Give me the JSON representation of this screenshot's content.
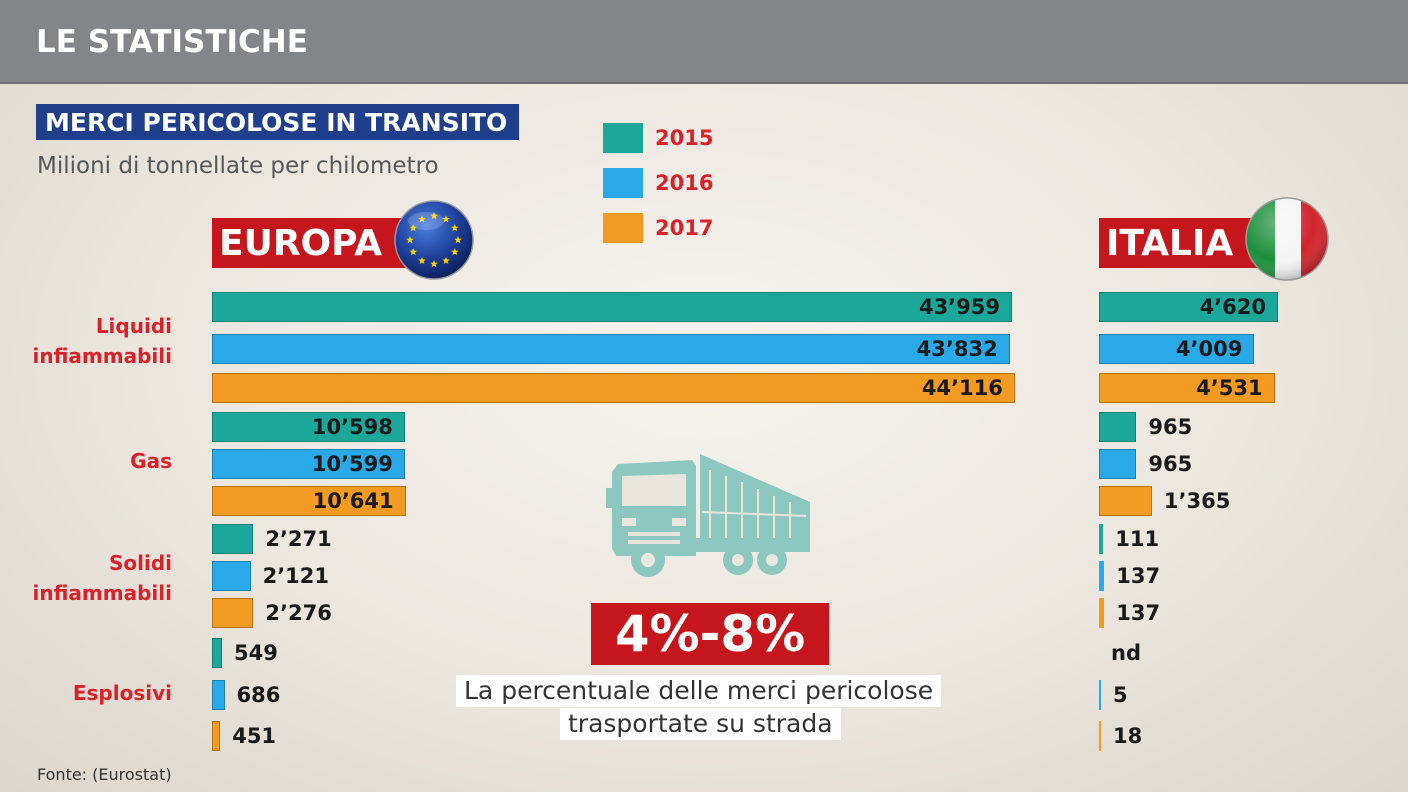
{
  "header": {
    "title": "LE STATISTICHE"
  },
  "chart_data": {
    "type": "bar",
    "orientation": "horizontal",
    "title": "MERCI PERICOLOSE IN TRANSITO",
    "subtitle": "Milioni di tonnellate per chilometro",
    "legend": [
      {
        "label": "2015",
        "color": "#1ba89a"
      },
      {
        "label": "2016",
        "color": "#29a9e8"
      },
      {
        "label": "2017",
        "color": "#f39a22"
      }
    ],
    "categories": [
      [
        "Liquidi",
        "infiammabili"
      ],
      [
        "Gas"
      ],
      [
        "Solidi",
        "infiammabili"
      ],
      [
        "Esplosivi"
      ]
    ],
    "panels": [
      {
        "label": "EUROPA",
        "values": [
          [
            43959,
            43832,
            44116
          ],
          [
            10598,
            10599,
            10641
          ],
          [
            2271,
            2121,
            2276
          ],
          [
            549,
            686,
            451
          ]
        ],
        "value_labels": [
          [
            "43’959",
            "43’832",
            "44’116"
          ],
          [
            "10’598",
            "10’599",
            "10’641"
          ],
          [
            "2’271",
            "2’121",
            "2’276"
          ],
          [
            "549",
            "686",
            "451"
          ]
        ]
      },
      {
        "label": "ITALIA",
        "values": [
          [
            4620,
            4009,
            4531
          ],
          [
            965,
            965,
            1365
          ],
          [
            111,
            137,
            137
          ],
          [
            null,
            5,
            18
          ]
        ],
        "value_labels": [
          [
            "4’620",
            "4’009",
            "4’531"
          ],
          [
            "965",
            "965",
            "1’365"
          ],
          [
            "111",
            "137",
            "137"
          ],
          [
            "nd",
            "5",
            "18"
          ]
        ]
      }
    ]
  },
  "highlight": {
    "value": "4%-8%",
    "description": [
      "La percentuale delle merci pericolose",
      "trasportate su strada"
    ]
  },
  "source": "Fonte: (Eurostat)"
}
